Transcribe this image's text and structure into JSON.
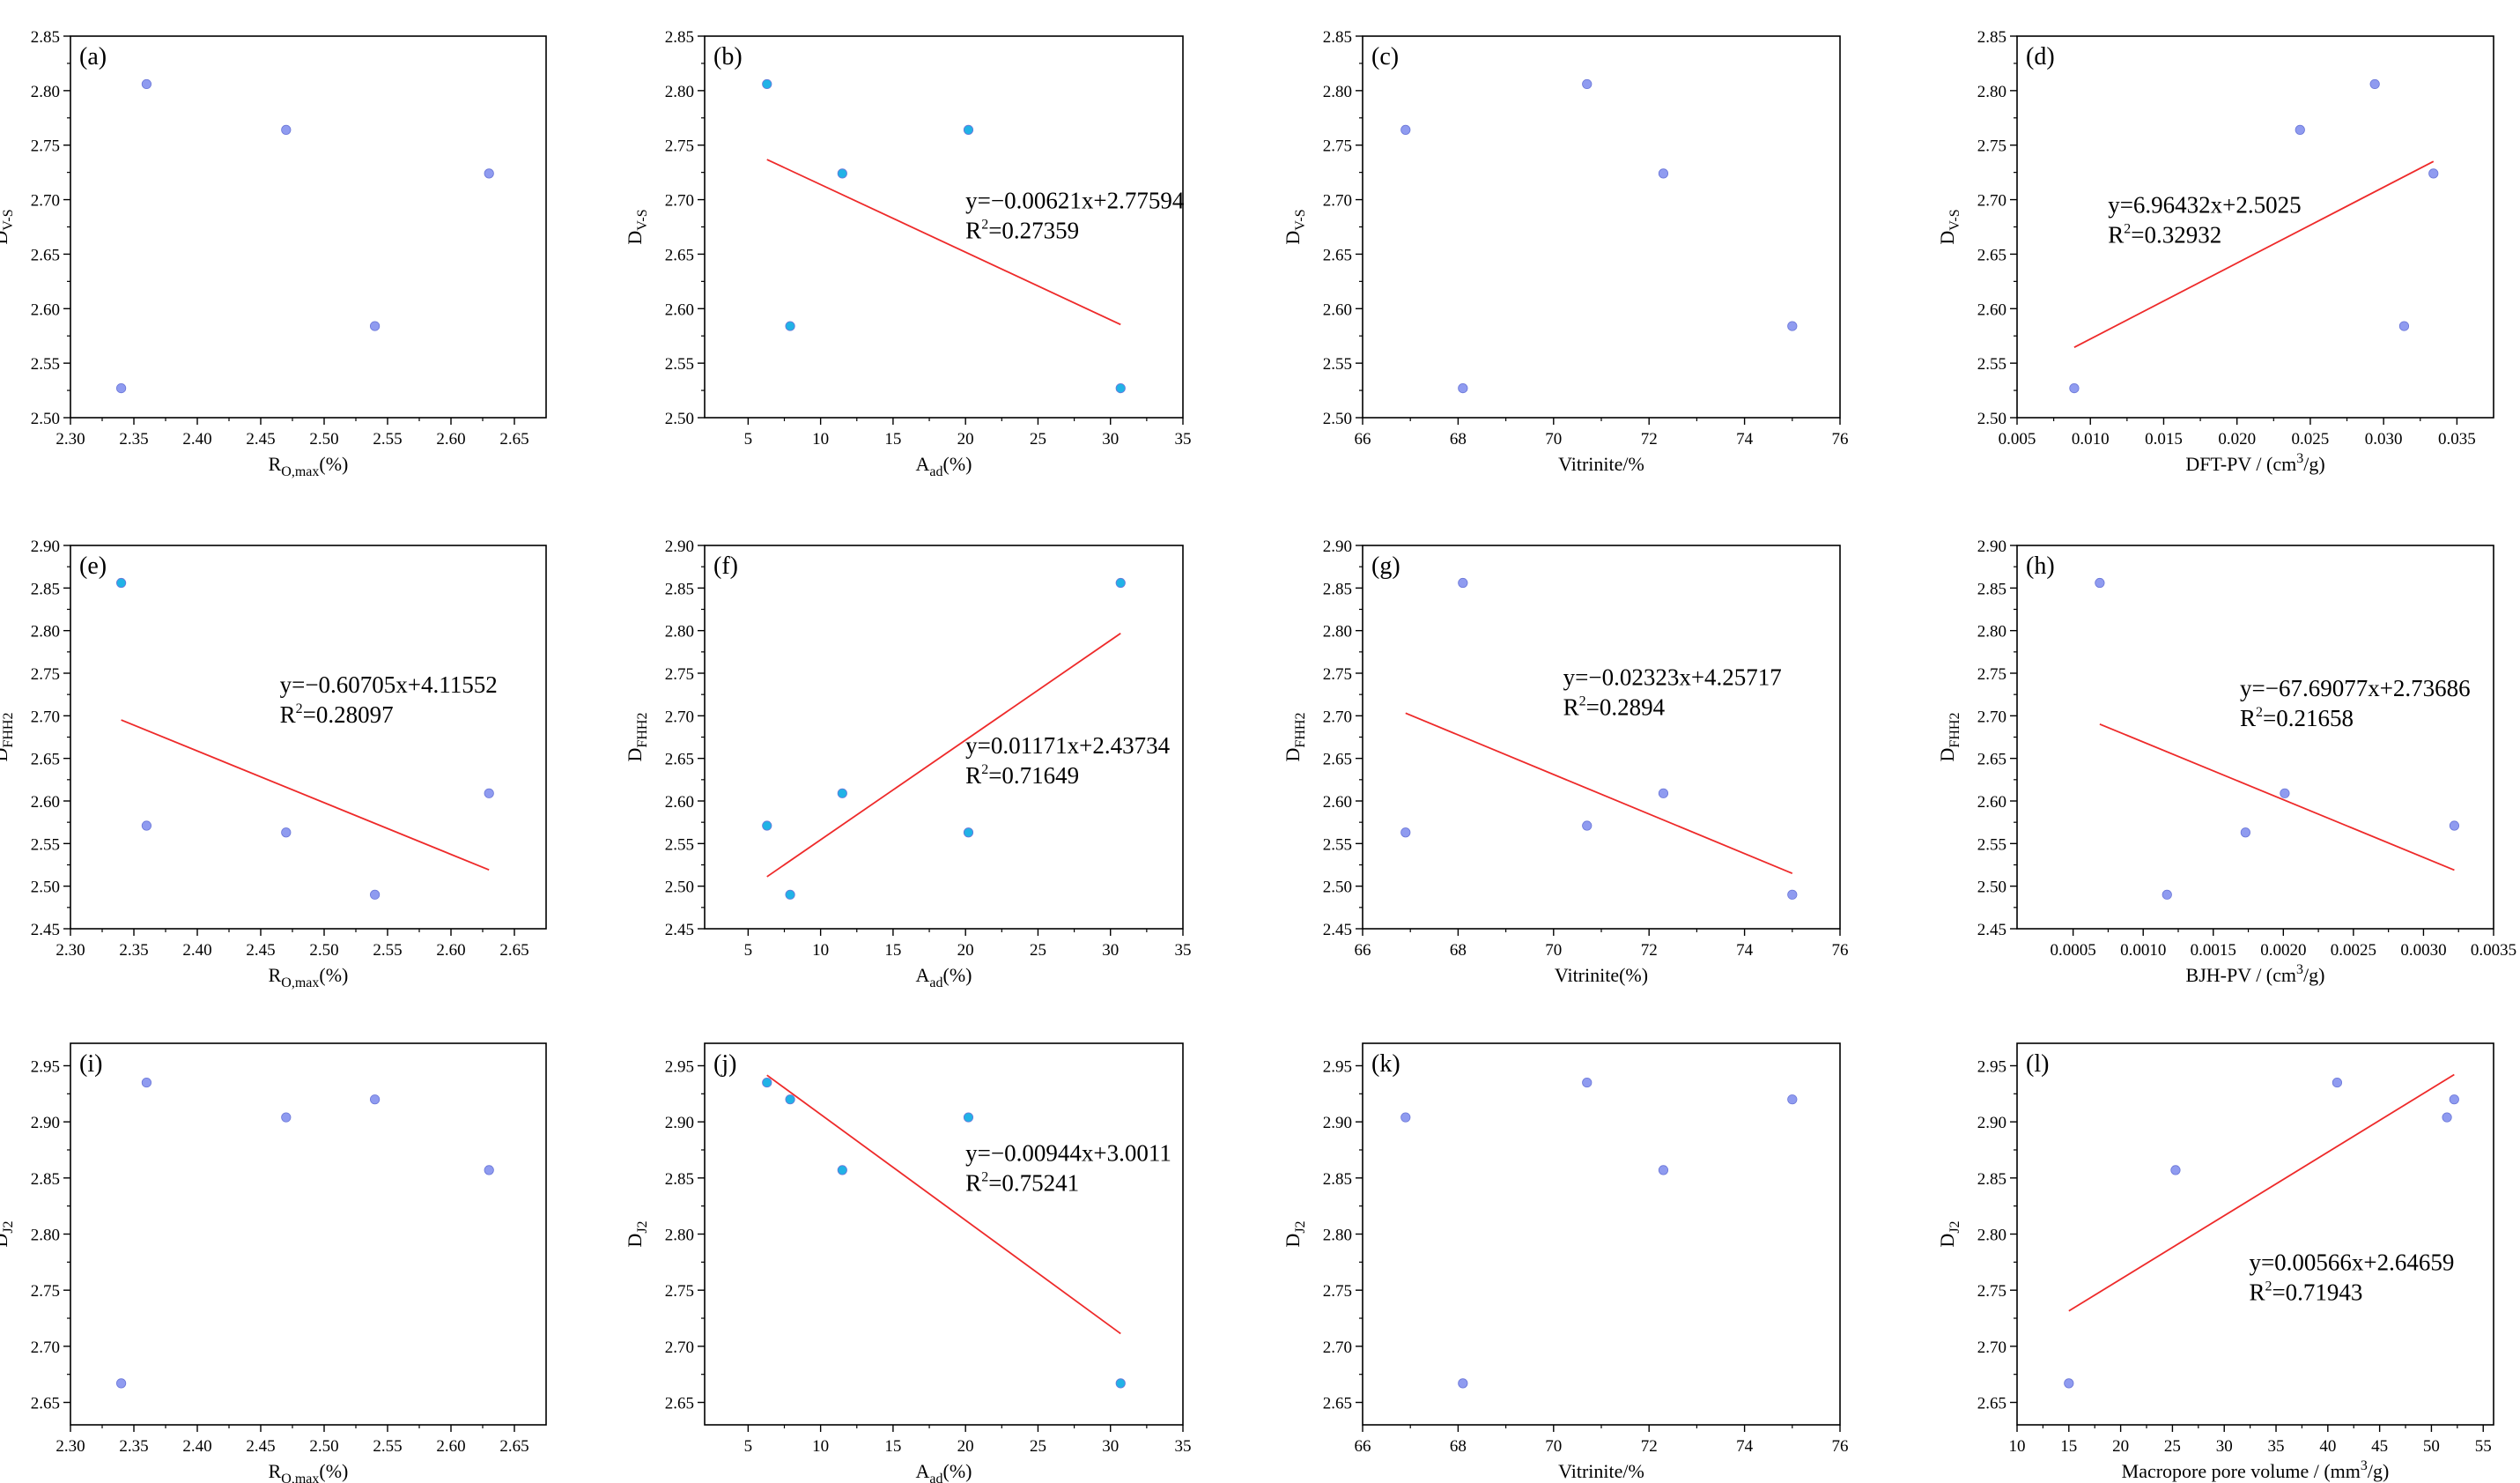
{
  "colors": {
    "point_fill": "#8f9bf0",
    "point_fill_cyan": "#21b2e6",
    "point_stroke": "#6a76d8",
    "fit_line": "#ee2a2a",
    "axis": "#000000"
  },
  "chart_data": [
    {
      "id": "a",
      "tag": "(a)",
      "type": "scatter",
      "ylabel": {
        "main": "D",
        "sub": "V-S"
      },
      "xlabel": {
        "main": "R",
        "sub": "O,max",
        "tail": "(%)"
      },
      "xlim": [
        2.3,
        2.675
      ],
      "ylim": [
        2.5,
        2.85
      ],
      "xticks": [
        "2.30",
        "2.35",
        "2.40",
        "2.45",
        "2.50",
        "2.55",
        "2.60",
        "2.65"
      ],
      "yticks": [
        "2.50",
        "2.55",
        "2.60",
        "2.65",
        "2.70",
        "2.75",
        "2.80",
        "2.85"
      ],
      "marker": "blue",
      "points": [
        [
          2.34,
          2.527
        ],
        [
          2.36,
          2.806
        ],
        [
          2.47,
          2.764
        ],
        [
          2.54,
          2.584
        ],
        [
          2.63,
          2.724
        ]
      ],
      "fit": null
    },
    {
      "id": "b",
      "tag": "(b)",
      "type": "scatter",
      "ylabel": {
        "main": "D",
        "sub": "V-S"
      },
      "xlabel": {
        "main": "A",
        "sub": "ad",
        "tail": "(%)"
      },
      "xlim": [
        2,
        35
      ],
      "ylim": [
        2.5,
        2.85
      ],
      "xticks": [
        "5",
        "10",
        "15",
        "20",
        "25",
        "30",
        "35"
      ],
      "yticks": [
        "2.50",
        "2.55",
        "2.60",
        "2.65",
        "2.70",
        "2.75",
        "2.80",
        "2.85"
      ],
      "marker": "cyan",
      "points": [
        [
          6.3,
          2.806
        ],
        [
          7.9,
          2.584
        ],
        [
          11.5,
          2.724
        ],
        [
          20.2,
          2.764
        ],
        [
          30.7,
          2.527
        ]
      ],
      "fit": {
        "x": [
          6.3,
          30.7
        ],
        "y": [
          2.7368,
          2.5854
        ],
        "eq": "y=−0.00621x+2.77594",
        "r2": "=0.27359",
        "eq_pos": [
          20.0,
          2.692
        ]
      }
    },
    {
      "id": "c",
      "tag": "(c)",
      "type": "scatter",
      "ylabel": {
        "main": "D",
        "sub": "V-S"
      },
      "xlabel": {
        "main": "Vitrinite/%",
        "sub": "",
        "tail": ""
      },
      "xlim": [
        66,
        76
      ],
      "ylim": [
        2.5,
        2.85
      ],
      "xticks": [
        "66",
        "68",
        "70",
        "72",
        "74",
        "76"
      ],
      "yticks": [
        "2.50",
        "2.55",
        "2.60",
        "2.65",
        "2.70",
        "2.75",
        "2.80",
        "2.85"
      ],
      "marker": "blue",
      "points": [
        [
          66.9,
          2.764
        ],
        [
          68.1,
          2.527
        ],
        [
          70.7,
          2.806
        ],
        [
          72.3,
          2.724
        ],
        [
          75.0,
          2.584
        ]
      ],
      "fit": null
    },
    {
      "id": "d",
      "tag": "(d)",
      "type": "scatter",
      "ylabel": {
        "main": "D",
        "sub": "V-S"
      },
      "xlabel": {
        "main": "DFT-PV / (cm",
        "sup": "3",
        "tail": "/g)"
      },
      "xlim": [
        0.005,
        0.0375
      ],
      "ylim": [
        2.5,
        2.85
      ],
      "xticks": [
        "0.005",
        "0.010",
        "0.015",
        "0.020",
        "0.025",
        "0.030",
        "0.035"
      ],
      "yticks": [
        "2.50",
        "2.55",
        "2.60",
        "2.65",
        "2.70",
        "2.75",
        "2.80",
        "2.85"
      ],
      "marker": "blue",
      "points": [
        [
          0.0089,
          2.527
        ],
        [
          0.0243,
          2.764
        ],
        [
          0.0294,
          2.806
        ],
        [
          0.0314,
          2.584
        ],
        [
          0.0334,
          2.724
        ]
      ],
      "fit": {
        "x": [
          0.0089,
          0.0334
        ],
        "y": [
          2.5645,
          2.7351
        ],
        "eq": "y=6.96432x+2.5025",
        "r2": "=0.32932",
        "eq_pos": [
          0.0112,
          2.688
        ]
      }
    },
    {
      "id": "e",
      "tag": "(e)",
      "type": "scatter",
      "ylabel": {
        "main": "D",
        "sub": "FHH2"
      },
      "xlabel": {
        "main": "R",
        "sub": "O,max",
        "tail": "(%)"
      },
      "xlim": [
        2.3,
        2.675
      ],
      "ylim": [
        2.45,
        2.9
      ],
      "xticks": [
        "2.30",
        "2.35",
        "2.40",
        "2.45",
        "2.50",
        "2.55",
        "2.60",
        "2.65"
      ],
      "yticks": [
        "2.45",
        "2.50",
        "2.55",
        "2.60",
        "2.65",
        "2.70",
        "2.75",
        "2.80",
        "2.85",
        "2.90"
      ],
      "marker": "blue",
      "points": [
        [
          2.34,
          2.856
        ],
        [
          2.36,
          2.571
        ],
        [
          2.47,
          2.563
        ],
        [
          2.54,
          2.49
        ],
        [
          2.63,
          2.609
        ]
      ],
      "first_cyan": true,
      "fit": {
        "x": [
          2.34,
          2.63
        ],
        "y": [
          2.6951,
          2.5191
        ],
        "eq": "y=−0.60705x+4.11552",
        "r2": "=0.28097",
        "eq_pos": [
          2.465,
          2.727
        ]
      }
    },
    {
      "id": "f",
      "tag": "(f)",
      "type": "scatter",
      "ylabel": {
        "main": "D",
        "sub": "FHH2"
      },
      "xlabel": {
        "main": "A",
        "sub": "ad",
        "tail": "(%)"
      },
      "xlim": [
        2,
        35
      ],
      "ylim": [
        2.45,
        2.9
      ],
      "xticks": [
        "5",
        "10",
        "15",
        "20",
        "25",
        "30",
        "35"
      ],
      "yticks": [
        "2.45",
        "2.50",
        "2.55",
        "2.60",
        "2.65",
        "2.70",
        "2.75",
        "2.80",
        "2.85",
        "2.90"
      ],
      "marker": "cyan",
      "points": [
        [
          6.3,
          2.571
        ],
        [
          7.9,
          2.49
        ],
        [
          11.5,
          2.609
        ],
        [
          20.2,
          2.563
        ],
        [
          30.7,
          2.856
        ]
      ],
      "fit": {
        "x": [
          6.3,
          30.7
        ],
        "y": [
          2.5111,
          2.7968
        ],
        "eq": "y=0.01171x+2.43734",
        "r2": "=0.71649",
        "eq_pos": [
          20.0,
          2.656
        ]
      }
    },
    {
      "id": "g",
      "tag": "(g)",
      "type": "scatter",
      "ylabel": {
        "main": "D",
        "sub": "FHH2"
      },
      "xlabel": {
        "main": "Vitrinite(%)",
        "sub": "",
        "tail": ""
      },
      "xlim": [
        66,
        76
      ],
      "ylim": [
        2.45,
        2.9
      ],
      "xticks": [
        "66",
        "68",
        "70",
        "72",
        "74",
        "76"
      ],
      "yticks": [
        "2.45",
        "2.50",
        "2.55",
        "2.60",
        "2.65",
        "2.70",
        "2.75",
        "2.80",
        "2.85",
        "2.90"
      ],
      "marker": "blue",
      "points": [
        [
          66.9,
          2.563
        ],
        [
          68.1,
          2.856
        ],
        [
          70.7,
          2.571
        ],
        [
          72.3,
          2.609
        ],
        [
          75.0,
          2.49
        ]
      ],
      "fit": {
        "x": [
          66.9,
          75.0
        ],
        "y": [
          2.7031,
          2.515
        ],
        "eq": "y=−0.02323x+4.25717",
        "r2": "=0.2894",
        "eq_pos": [
          70.2,
          2.736
        ]
      }
    },
    {
      "id": "h",
      "tag": "(h)",
      "type": "scatter",
      "ylabel": {
        "main": "D",
        "sub": "FHH2"
      },
      "xlabel": {
        "main": "BJH-PV / (cm",
        "sup": "3",
        "tail": "/g)"
      },
      "xlim": [
        0.0001,
        0.0035
      ],
      "ylim": [
        2.45,
        2.9
      ],
      "xticks": [
        "0.0005",
        "0.0010",
        "0.0015",
        "0.0020",
        "0.0025",
        "0.0030",
        "0.0035"
      ],
      "yticks": [
        "2.45",
        "2.50",
        "2.55",
        "2.60",
        "2.65",
        "2.70",
        "2.75",
        "2.80",
        "2.85",
        "2.90"
      ],
      "marker": "blue",
      "points": [
        [
          0.00069,
          2.856
        ],
        [
          0.00117,
          2.49
        ],
        [
          0.00173,
          2.563
        ],
        [
          0.00201,
          2.609
        ],
        [
          0.00322,
          2.571
        ]
      ],
      "fit": {
        "x": [
          0.00069,
          0.00322
        ],
        "y": [
          2.6902,
          2.5189
        ],
        "eq": "y=−67.69077x+2.73686",
        "r2": "=0.21658",
        "eq_pos": [
          0.00169,
          2.723
        ]
      }
    },
    {
      "id": "i",
      "tag": "(i)",
      "type": "scatter",
      "ylabel": {
        "main": "D",
        "sub": "J2"
      },
      "xlabel": {
        "main": "R",
        "sub": "O,max",
        "tail": "(%)"
      },
      "xlim": [
        2.3,
        2.675
      ],
      "ylim": [
        2.63,
        2.97
      ],
      "xticks": [
        "2.30",
        "2.35",
        "2.40",
        "2.45",
        "2.50",
        "2.55",
        "2.60",
        "2.65"
      ],
      "yticks": [
        "2.65",
        "2.70",
        "2.75",
        "2.80",
        "2.85",
        "2.90",
        "2.95"
      ],
      "marker": "blue",
      "points": [
        [
          2.34,
          2.667
        ],
        [
          2.36,
          2.935
        ],
        [
          2.47,
          2.904
        ],
        [
          2.54,
          2.92
        ],
        [
          2.63,
          2.857
        ]
      ],
      "fit": null
    },
    {
      "id": "j",
      "tag": "(j)",
      "type": "scatter",
      "ylabel": {
        "main": "D",
        "sub": "J2"
      },
      "xlabel": {
        "main": "A",
        "sub": "ad",
        "tail": "(%)"
      },
      "xlim": [
        2,
        35
      ],
      "ylim": [
        2.63,
        2.97
      ],
      "xticks": [
        "5",
        "10",
        "15",
        "20",
        "25",
        "30",
        "35"
      ],
      "yticks": [
        "2.65",
        "2.70",
        "2.75",
        "2.80",
        "2.85",
        "2.90",
        "2.95"
      ],
      "marker": "cyan",
      "points": [
        [
          6.3,
          2.935
        ],
        [
          7.9,
          2.92
        ],
        [
          11.5,
          2.857
        ],
        [
          20.2,
          2.904
        ],
        [
          30.7,
          2.667
        ]
      ],
      "fit": {
        "x": [
          6.3,
          30.7
        ],
        "y": [
          2.9416,
          2.7113
        ],
        "eq": "y=−0.00944x+3.0011",
        "r2": "=0.75241",
        "eq_pos": [
          20.0,
          2.865
        ]
      }
    },
    {
      "id": "k",
      "tag": "(k)",
      "type": "scatter",
      "ylabel": {
        "main": "D",
        "sub": "J2"
      },
      "xlabel": {
        "main": "Vitrinite/%",
        "sub": "",
        "tail": ""
      },
      "xlim": [
        66,
        76
      ],
      "ylim": [
        2.63,
        2.97
      ],
      "xticks": [
        "66",
        "68",
        "70",
        "72",
        "74",
        "76"
      ],
      "yticks": [
        "2.65",
        "2.70",
        "2.75",
        "2.80",
        "2.85",
        "2.90",
        "2.95"
      ],
      "marker": "blue",
      "points": [
        [
          66.9,
          2.904
        ],
        [
          68.1,
          2.667
        ],
        [
          70.7,
          2.935
        ],
        [
          72.3,
          2.857
        ],
        [
          75.0,
          2.92
        ]
      ],
      "fit": null
    },
    {
      "id": "l",
      "tag": "(l)",
      "type": "scatter",
      "ylabel": {
        "main": "D",
        "sub": "J2"
      },
      "xlabel": {
        "main": "Macropore pore volume / (mm",
        "sup": "3",
        "tail": "/g)"
      },
      "xlim": [
        10,
        56
      ],
      "ylim": [
        2.63,
        2.97
      ],
      "xticks": [
        "10",
        "15",
        "20",
        "25",
        "30",
        "35",
        "40",
        "45",
        "50",
        "55"
      ],
      "yticks": [
        "2.65",
        "2.70",
        "2.75",
        "2.80",
        "2.85",
        "2.90",
        "2.95"
      ],
      "marker": "blue",
      "points": [
        [
          15.0,
          2.667
        ],
        [
          25.3,
          2.857
        ],
        [
          40.9,
          2.935
        ],
        [
          51.5,
          2.904
        ],
        [
          52.2,
          2.92
        ]
      ],
      "fit": {
        "x": [
          15.0,
          52.2
        ],
        "y": [
          2.7315,
          2.9421
        ],
        "eq": "y=0.00566x+2.64659",
        "r2": "=0.71943",
        "eq_pos": [
          32.4,
          2.768
        ]
      }
    }
  ]
}
